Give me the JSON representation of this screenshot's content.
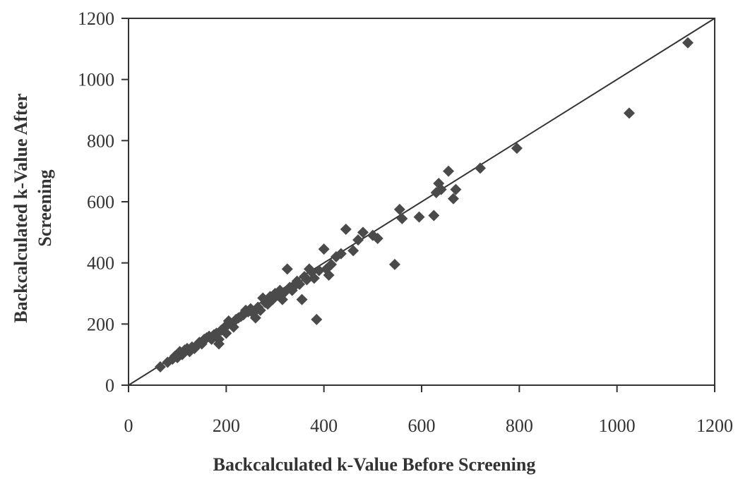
{
  "chart_data": {
    "type": "scatter",
    "title": "",
    "xlabel": "Backcalculated k-Value Before Screening",
    "ylabel_lines": [
      "Backcalculated k-Value After",
      "Screening"
    ],
    "xlim": [
      0,
      1200
    ],
    "ylim": [
      0,
      1200
    ],
    "xticks": [
      0,
      200,
      400,
      600,
      800,
      1000,
      1200
    ],
    "yticks": [
      0,
      200,
      400,
      600,
      800,
      1000,
      1200
    ],
    "grid": false,
    "legend": "none",
    "marker": "diamond",
    "marker_color": "#4a4a4a",
    "reference_line": {
      "label": "",
      "from": [
        0,
        0
      ],
      "to": [
        1200,
        1200
      ]
    },
    "points": [
      [
        65,
        60
      ],
      [
        80,
        75
      ],
      [
        90,
        85
      ],
      [
        95,
        95
      ],
      [
        100,
        90
      ],
      [
        105,
        110
      ],
      [
        110,
        100
      ],
      [
        115,
        115
      ],
      [
        120,
        120
      ],
      [
        125,
        110
      ],
      [
        130,
        125
      ],
      [
        135,
        120
      ],
      [
        140,
        130
      ],
      [
        145,
        140
      ],
      [
        150,
        135
      ],
      [
        155,
        150
      ],
      [
        160,
        155
      ],
      [
        165,
        160
      ],
      [
        170,
        150
      ],
      [
        175,
        165
      ],
      [
        180,
        170
      ],
      [
        185,
        150
      ],
      [
        185,
        135
      ],
      [
        190,
        180
      ],
      [
        195,
        185
      ],
      [
        200,
        195
      ],
      [
        200,
        170
      ],
      [
        205,
        210
      ],
      [
        210,
        200
      ],
      [
        215,
        190
      ],
      [
        220,
        215
      ],
      [
        225,
        220
      ],
      [
        230,
        225
      ],
      [
        235,
        230
      ],
      [
        240,
        245
      ],
      [
        245,
        240
      ],
      [
        250,
        250
      ],
      [
        255,
        235
      ],
      [
        260,
        220
      ],
      [
        265,
        255
      ],
      [
        270,
        245
      ],
      [
        275,
        285
      ],
      [
        280,
        270
      ],
      [
        285,
        265
      ],
      [
        290,
        290
      ],
      [
        295,
        280
      ],
      [
        300,
        300
      ],
      [
        305,
        295
      ],
      [
        310,
        310
      ],
      [
        315,
        280
      ],
      [
        320,
        305
      ],
      [
        325,
        380
      ],
      [
        330,
        320
      ],
      [
        335,
        310
      ],
      [
        340,
        325
      ],
      [
        345,
        340
      ],
      [
        350,
        330
      ],
      [
        355,
        280
      ],
      [
        360,
        355
      ],
      [
        365,
        345
      ],
      [
        370,
        380
      ],
      [
        375,
        370
      ],
      [
        380,
        350
      ],
      [
        385,
        215
      ],
      [
        390,
        375
      ],
      [
        400,
        445
      ],
      [
        405,
        380
      ],
      [
        410,
        360
      ],
      [
        415,
        395
      ],
      [
        425,
        420
      ],
      [
        435,
        430
      ],
      [
        445,
        510
      ],
      [
        460,
        440
      ],
      [
        470,
        475
      ],
      [
        480,
        500
      ],
      [
        500,
        490
      ],
      [
        510,
        480
      ],
      [
        545,
        395
      ],
      [
        555,
        575
      ],
      [
        560,
        545
      ],
      [
        595,
        550
      ],
      [
        625,
        555
      ],
      [
        630,
        630
      ],
      [
        635,
        660
      ],
      [
        640,
        640
      ],
      [
        655,
        700
      ],
      [
        665,
        610
      ],
      [
        670,
        640
      ],
      [
        720,
        710
      ],
      [
        795,
        775
      ],
      [
        1025,
        890
      ],
      [
        1145,
        1120
      ]
    ]
  }
}
